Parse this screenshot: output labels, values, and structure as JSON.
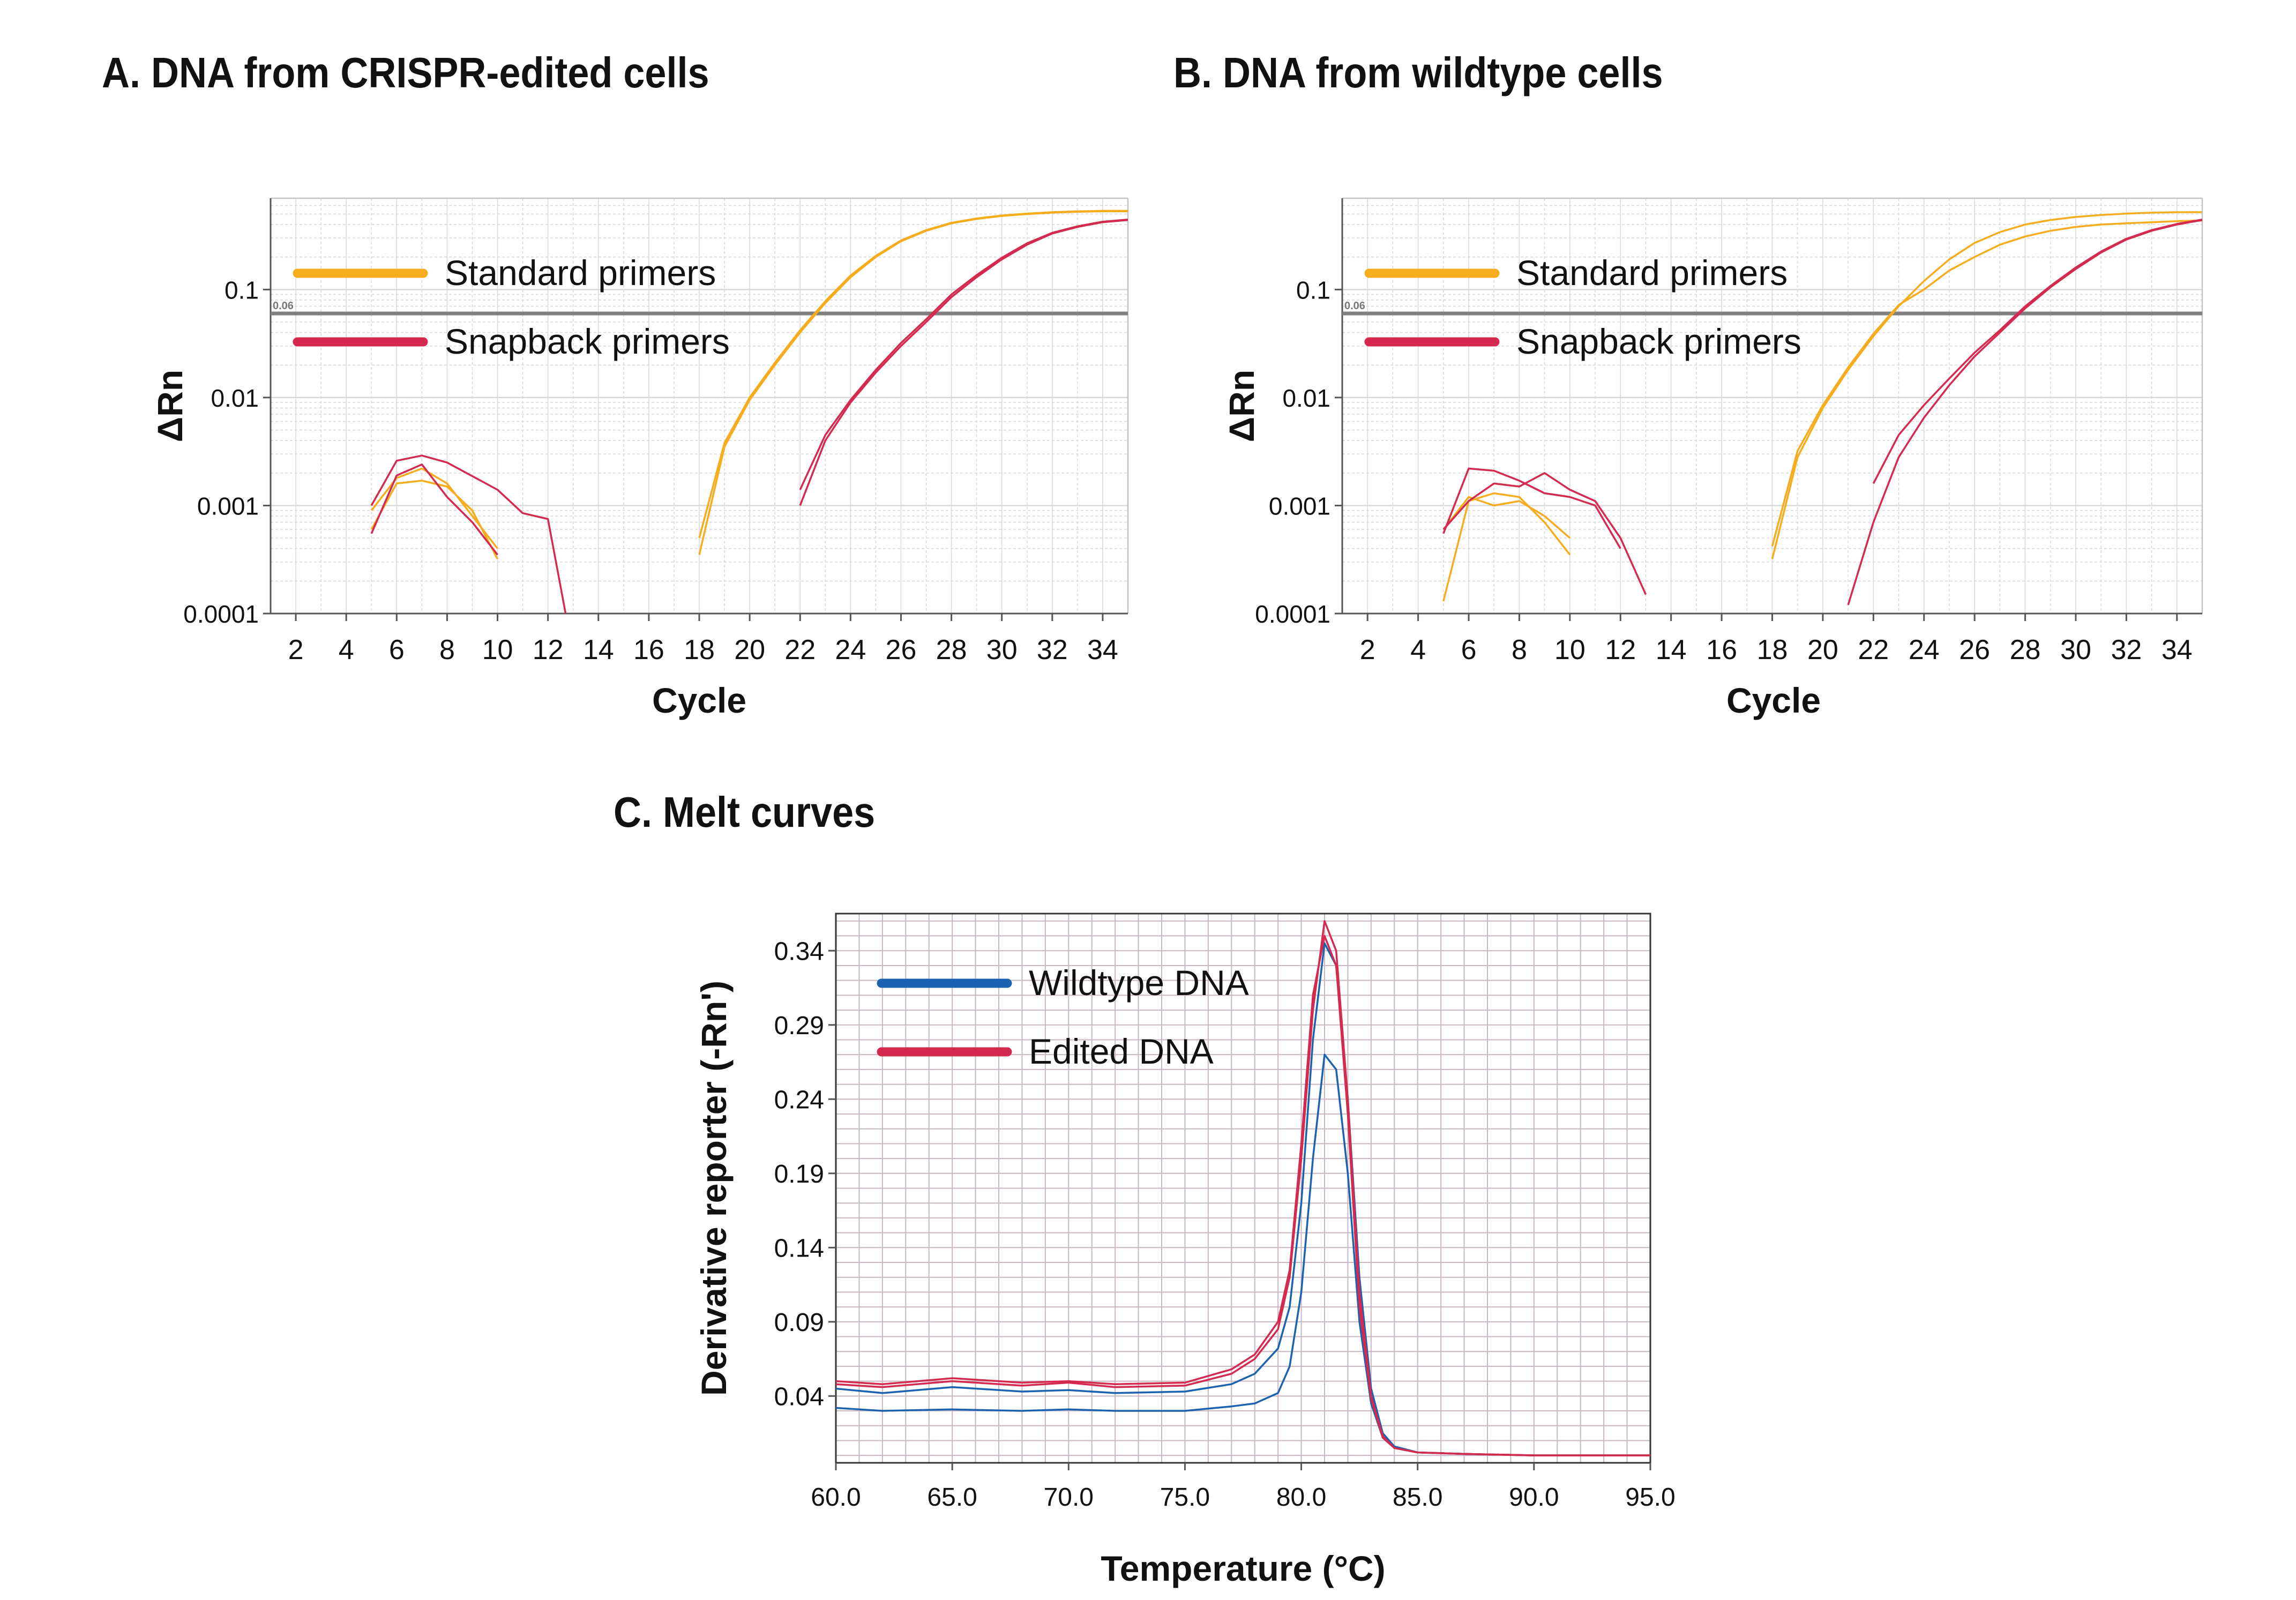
{
  "panels": {
    "a_title": "A. DNA from CRISPR-edited cells",
    "b_title": "B. DNA from wildtype cells",
    "c_title": "C. Melt curves"
  },
  "colors": {
    "standard": "#f5ad1e",
    "snapback": "#d42a4f",
    "wildtype": "#1b62b0",
    "edited": "#d42a4f",
    "threshold": "#808080",
    "grid": "#d8d8d8",
    "melt_grid": "#c9b7c4"
  },
  "chart_data": [
    {
      "type": "line",
      "title": "A. DNA from CRISPR-edited cells",
      "xlabel": "Cycle",
      "ylabel": "ΔRn",
      "yscale": "log",
      "xlim": [
        1,
        35
      ],
      "ylim": [
        0.0001,
        0.7
      ],
      "xticks": [
        2,
        4,
        6,
        8,
        10,
        12,
        14,
        16,
        18,
        20,
        22,
        24,
        26,
        28,
        30,
        32,
        34
      ],
      "yticks": [
        {
          "v": 0.1,
          "label": "0.1"
        },
        {
          "v": 0.01,
          "label": "0.01"
        },
        {
          "v": 0.001,
          "label": "0.001"
        },
        {
          "v": 0.0001,
          "label": "0.0001"
        }
      ],
      "threshold": {
        "value": 0.06,
        "label": "0.06"
      },
      "grid": true,
      "legend": {
        "position": "top-left",
        "entries": [
          {
            "label": "Standard primers",
            "color": "#f5ad1e"
          },
          {
            "label": "Snapback primers",
            "color": "#d42a4f"
          }
        ]
      },
      "series": [
        {
          "group": "standard",
          "x": [
            5,
            6,
            7,
            8,
            9,
            10
          ],
          "y": [
            0.0006,
            0.0016,
            0.0017,
            0.0015,
            0.0009,
            0.00032
          ]
        },
        {
          "group": "standard",
          "x": [
            5,
            6,
            7,
            8,
            9,
            10
          ],
          "y": [
            0.0009,
            0.0018,
            0.0022,
            0.0016,
            0.0008,
            0.0004
          ]
        },
        {
          "group": "snapback",
          "x": [
            5,
            6,
            7,
            8,
            9,
            10
          ],
          "y": [
            0.00055,
            0.0019,
            0.0024,
            0.0012,
            0.0007,
            0.00035
          ]
        },
        {
          "group": "snapback",
          "x": [
            5,
            6,
            7,
            8,
            10,
            11,
            12,
            12.7
          ],
          "y": [
            0.001,
            0.0026,
            0.0029,
            0.0025,
            0.0014,
            0.00085,
            0.00075,
            0.0001
          ]
        },
        {
          "group": "standard",
          "x": [
            18,
            19,
            20,
            21,
            22,
            23,
            24,
            25,
            26,
            27,
            28,
            29,
            30,
            31,
            32,
            33,
            34,
            35
          ],
          "y": [
            0.00035,
            0.0035,
            0.0095,
            0.02,
            0.04,
            0.075,
            0.13,
            0.2,
            0.28,
            0.35,
            0.41,
            0.45,
            0.48,
            0.5,
            0.515,
            0.525,
            0.53,
            0.53
          ]
        },
        {
          "group": "standard",
          "x": [
            18,
            19,
            20,
            21,
            22,
            23,
            24,
            25,
            26,
            27,
            28,
            29,
            30,
            31,
            32,
            33,
            34,
            35
          ],
          "y": [
            0.0005,
            0.0038,
            0.01,
            0.021,
            0.042,
            0.078,
            0.135,
            0.205,
            0.285,
            0.355,
            0.415,
            0.455,
            0.485,
            0.505,
            0.52,
            0.53,
            0.535,
            0.535
          ]
        },
        {
          "group": "snapback",
          "x": [
            22,
            23,
            24,
            25,
            26,
            27,
            28,
            29,
            30,
            31,
            32,
            33,
            34,
            35
          ],
          "y": [
            0.001,
            0.004,
            0.009,
            0.017,
            0.03,
            0.05,
            0.085,
            0.13,
            0.19,
            0.26,
            0.33,
            0.38,
            0.42,
            0.44
          ]
        },
        {
          "group": "snapback",
          "x": [
            22,
            23,
            24,
            25,
            26,
            27,
            28,
            29,
            30,
            31,
            32,
            33,
            34,
            35
          ],
          "y": [
            0.0014,
            0.0045,
            0.0095,
            0.018,
            0.032,
            0.053,
            0.09,
            0.136,
            0.197,
            0.268,
            0.335,
            0.385,
            0.425,
            0.445
          ]
        }
      ]
    },
    {
      "type": "line",
      "title": "B. DNA from wildtype cells",
      "xlabel": "Cycle",
      "ylabel": "ΔRn",
      "yscale": "log",
      "xlim": [
        1,
        35
      ],
      "ylim": [
        0.0001,
        0.7
      ],
      "xticks": [
        2,
        4,
        6,
        8,
        10,
        12,
        14,
        16,
        18,
        20,
        22,
        24,
        26,
        28,
        30,
        32,
        34
      ],
      "yticks": [
        {
          "v": 0.1,
          "label": "0.1"
        },
        {
          "v": 0.01,
          "label": "0.01"
        },
        {
          "v": 0.001,
          "label": "0.001"
        },
        {
          "v": 0.0001,
          "label": "0.0001"
        }
      ],
      "threshold": {
        "value": 0.06,
        "label": "0.06"
      },
      "grid": true,
      "legend": {
        "position": "top-left",
        "entries": [
          {
            "label": "Standard primers",
            "color": "#f5ad1e"
          },
          {
            "label": "Snapback primers",
            "color": "#d42a4f"
          }
        ]
      },
      "series": [
        {
          "group": "standard",
          "x": [
            5,
            6,
            7,
            8,
            9,
            10
          ],
          "y": [
            0.00013,
            0.0011,
            0.0013,
            0.0012,
            0.0007,
            0.00035
          ]
        },
        {
          "group": "standard",
          "x": [
            5,
            6,
            7,
            8,
            9,
            10
          ],
          "y": [
            0.0006,
            0.0012,
            0.001,
            0.0011,
            0.0008,
            0.0005
          ]
        },
        {
          "group": "snapback",
          "x": [
            5,
            6,
            7,
            8,
            9,
            10,
            11,
            12
          ],
          "y": [
            0.00055,
            0.0022,
            0.0021,
            0.0017,
            0.0013,
            0.0012,
            0.001,
            0.0004
          ]
        },
        {
          "group": "snapback",
          "x": [
            5,
            6,
            7,
            8,
            9,
            10,
            11,
            12,
            13
          ],
          "y": [
            0.0006,
            0.0011,
            0.0016,
            0.0015,
            0.002,
            0.0014,
            0.0011,
            0.0005,
            0.00015
          ]
        },
        {
          "group": "standard",
          "x": [
            18,
            19,
            20,
            21,
            22,
            23,
            24,
            25,
            26,
            27,
            28,
            29,
            30,
            31,
            32,
            33,
            34,
            35
          ],
          "y": [
            0.00032,
            0.0028,
            0.008,
            0.018,
            0.037,
            0.07,
            0.12,
            0.19,
            0.27,
            0.34,
            0.4,
            0.44,
            0.47,
            0.49,
            0.505,
            0.515,
            0.52,
            0.52
          ]
        },
        {
          "group": "standard",
          "x": [
            18,
            19,
            20,
            21,
            22,
            23,
            24,
            25,
            26,
            27,
            28,
            29,
            30,
            31,
            32,
            33,
            34,
            35
          ],
          "y": [
            0.00042,
            0.0032,
            0.0085,
            0.019,
            0.039,
            0.072,
            0.1,
            0.15,
            0.2,
            0.26,
            0.31,
            0.35,
            0.38,
            0.4,
            0.41,
            0.42,
            0.43,
            0.435
          ]
        },
        {
          "group": "snapback",
          "x": [
            21,
            22,
            23,
            24,
            25,
            26,
            27,
            28,
            29,
            30,
            31,
            32,
            33,
            34,
            35
          ],
          "y": [
            0.00012,
            0.0007,
            0.0028,
            0.0065,
            0.013,
            0.024,
            0.04,
            0.067,
            0.105,
            0.155,
            0.22,
            0.29,
            0.35,
            0.4,
            0.44
          ]
        },
        {
          "group": "snapback",
          "x": [
            22,
            23,
            24,
            25,
            26,
            27,
            28,
            29,
            30,
            31,
            32,
            33,
            34,
            35
          ],
          "y": [
            0.0016,
            0.0045,
            0.0085,
            0.015,
            0.026,
            0.042,
            0.07,
            0.108,
            0.16,
            0.225,
            0.295,
            0.355,
            0.405,
            0.445
          ]
        }
      ]
    },
    {
      "type": "line",
      "title": "C. Melt curves",
      "xlabel": "Temperature (°C)",
      "ylabel": "Derivative reporter (-Rn')",
      "xlim": [
        60,
        95
      ],
      "ylim": [
        -0.005,
        0.365
      ],
      "xticks": [
        60,
        65,
        70,
        75,
        80,
        85,
        90,
        95
      ],
      "xtick_labels": [
        "60.0",
        "65.0",
        "70.0",
        "75.0",
        "80.0",
        "85.0",
        "90.0",
        "95.0"
      ],
      "yticks": [
        0.04,
        0.09,
        0.14,
        0.19,
        0.24,
        0.29,
        0.34
      ],
      "grid": true,
      "legend": {
        "position": "top-left",
        "entries": [
          {
            "label": "Wildtype DNA",
            "color": "#1b62b0"
          },
          {
            "label": "Edited DNA",
            "color": "#d42a4f"
          }
        ]
      },
      "series": [
        {
          "group": "wildtype",
          "x": [
            60,
            62,
            65,
            68,
            70,
            72,
            75,
            77,
            78,
            79,
            79.5,
            80,
            80.5,
            81,
            81.5,
            82,
            82.5,
            83,
            83.5,
            84,
            85,
            87,
            90,
            95
          ],
          "y": [
            0.032,
            0.03,
            0.031,
            0.03,
            0.031,
            0.03,
            0.03,
            0.033,
            0.035,
            0.042,
            0.06,
            0.11,
            0.2,
            0.27,
            0.26,
            0.19,
            0.09,
            0.035,
            0.012,
            0.005,
            0.002,
            0.001,
            0.0,
            0.0
          ]
        },
        {
          "group": "wildtype",
          "x": [
            60,
            62,
            65,
            68,
            70,
            72,
            75,
            77,
            78,
            79,
            79.5,
            80,
            80.5,
            81,
            81.5,
            82,
            82.5,
            83,
            83.5,
            84,
            85,
            87,
            90,
            95
          ],
          "y": [
            0.045,
            0.042,
            0.046,
            0.043,
            0.044,
            0.042,
            0.043,
            0.048,
            0.055,
            0.072,
            0.1,
            0.17,
            0.28,
            0.345,
            0.33,
            0.24,
            0.12,
            0.045,
            0.015,
            0.006,
            0.002,
            0.001,
            0.0,
            0.0
          ]
        },
        {
          "group": "edited",
          "x": [
            60,
            62,
            65,
            68,
            70,
            72,
            75,
            77,
            78,
            79,
            79.5,
            80,
            80.5,
            81,
            81.5,
            82,
            82.5,
            83,
            83.5,
            84,
            85,
            87,
            90,
            95
          ],
          "y": [
            0.048,
            0.046,
            0.05,
            0.047,
            0.049,
            0.046,
            0.047,
            0.055,
            0.065,
            0.085,
            0.12,
            0.2,
            0.3,
            0.36,
            0.34,
            0.24,
            0.11,
            0.04,
            0.013,
            0.005,
            0.002,
            0.001,
            0.0,
            0.0
          ]
        },
        {
          "group": "edited",
          "x": [
            60,
            62,
            65,
            68,
            70,
            72,
            75,
            77,
            78,
            79,
            79.5,
            80,
            80.5,
            81,
            81.5,
            82,
            82.5,
            83,
            83.5,
            84,
            85,
            87,
            90,
            95
          ],
          "y": [
            0.05,
            0.048,
            0.052,
            0.049,
            0.05,
            0.048,
            0.049,
            0.058,
            0.068,
            0.09,
            0.125,
            0.21,
            0.31,
            0.35,
            0.33,
            0.23,
            0.1,
            0.038,
            0.012,
            0.005,
            0.002,
            0.001,
            0.0,
            0.0
          ]
        }
      ]
    }
  ]
}
